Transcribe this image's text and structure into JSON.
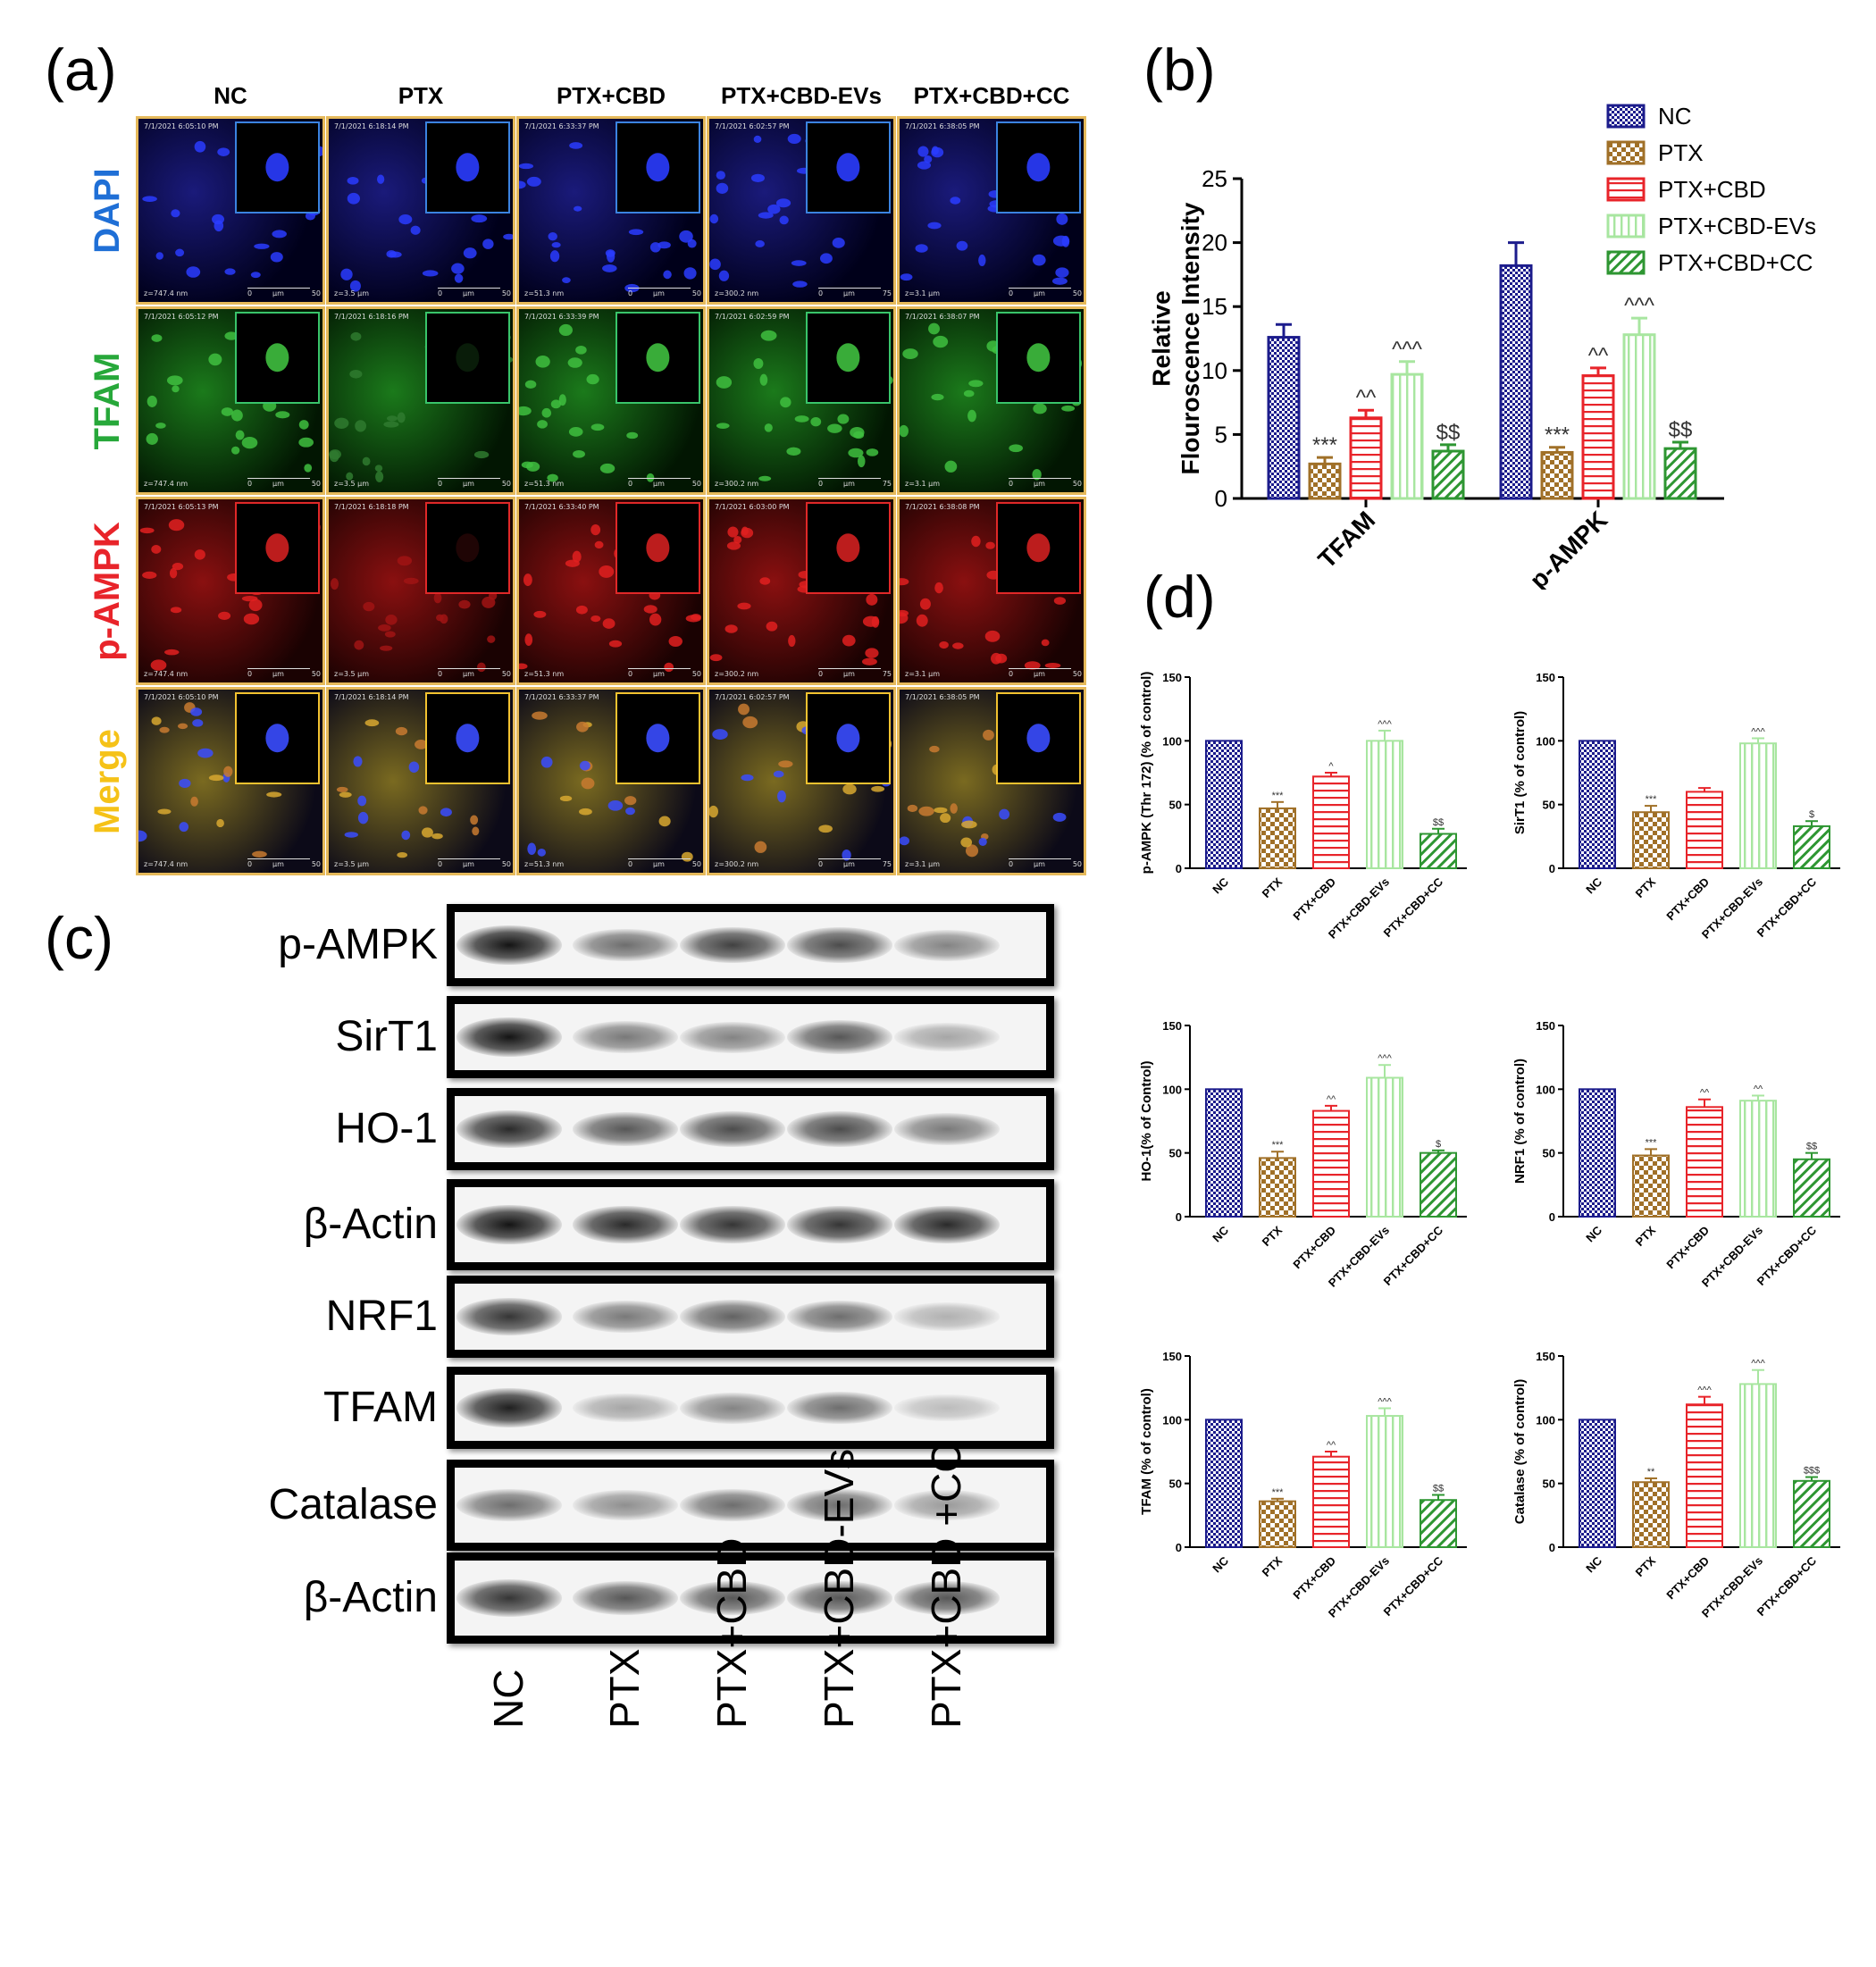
{
  "panels": {
    "a": "(a)",
    "b": "(b)",
    "c": "(c)",
    "d": "(d)"
  },
  "groups": [
    "NC",
    "PTX",
    "PTX+CBD",
    "PTX+CBD-EVs",
    "PTX+CBD+CC"
  ],
  "series_colors": [
    "#1c1c8c",
    "#a07028",
    "#e8242a",
    "#a8e6a0",
    "#2e9632"
  ],
  "micrographs": {
    "columns": [
      "NC",
      "PTX",
      "PTX+CBD",
      "PTX+CBD-EVs",
      "PTX+CBD+CC"
    ],
    "rows": [
      {
        "label": "DAPI",
        "color": "#1f6fd6"
      },
      {
        "label": "TFAM",
        "color": "#27a83a"
      },
      {
        "label": "p-AMPK",
        "color": "#e8242a"
      },
      {
        "label": "Merge",
        "color": "#f5c218"
      }
    ],
    "timestamps": [
      [
        "7/1/2021 6:05:10 PM",
        "7/1/2021 6:18:14 PM",
        "7/1/2021 6:33:37 PM",
        "7/1/2021 6:02:57 PM",
        "7/1/2021 6:38:05 PM"
      ],
      [
        "7/1/2021 6:05:12 PM",
        "7/1/2021 6:18:16 PM",
        "7/1/2021 6:33:39 PM",
        "7/1/2021 6:02:59 PM",
        "7/1/2021 6:38:07 PM"
      ],
      [
        "7/1/2021 6:05:13 PM",
        "7/1/2021 6:18:18 PM",
        "7/1/2021 6:33:40 PM",
        "7/1/2021 6:03:00 PM",
        "7/1/2021 6:38:08 PM"
      ],
      [
        "7/1/2021 6:05:10 PM",
        "7/1/2021 6:18:14 PM",
        "7/1/2021 6:33:37 PM",
        "7/1/2021 6:02:57 PM",
        "7/1/2021 6:38:05 PM"
      ]
    ],
    "z_labels": [
      "z=747.4 nm",
      "z=3.5 µm",
      "z=51.3 nm",
      "z=300.2 nm",
      "z=3.1 µm"
    ],
    "scale_unit": "µm",
    "scale_zero": "0",
    "scale_values": [
      "50",
      "50",
      "50",
      "75",
      "50"
    ]
  },
  "blot": {
    "proteins": [
      "p-AMPK",
      "SirT1",
      "HO-1",
      "β-Actin",
      "NRF1",
      "TFAM",
      "Catalase",
      "β-Actin"
    ],
    "lanes": [
      "NC",
      "PTX",
      "PTX+CBD",
      "PTX+CBD-EVs",
      "PTX+CBD +CC"
    ]
  },
  "chart_data": [
    {
      "type": "bar",
      "panel": "b",
      "categories": [
        "TFAM",
        "p-AMPK"
      ],
      "ylabel": "Relative Flouroscence Intensity",
      "ylim": [
        0,
        25
      ],
      "yticks": [
        0,
        5,
        10,
        15,
        20,
        25
      ],
      "series": [
        {
          "name": "NC",
          "values": [
            12.6,
            18.2
          ],
          "errors": [
            1.0,
            1.8
          ],
          "marks": [
            "",
            ""
          ]
        },
        {
          "name": "PTX",
          "values": [
            2.7,
            3.6
          ],
          "errors": [
            0.5,
            0.4
          ],
          "marks": [
            "***",
            "***"
          ]
        },
        {
          "name": "PTX+CBD",
          "values": [
            6.3,
            9.6
          ],
          "errors": [
            0.6,
            0.6
          ],
          "marks": [
            "^^",
            "^^"
          ]
        },
        {
          "name": "PTX+CBD-EVs",
          "values": [
            9.7,
            12.8
          ],
          "errors": [
            1.0,
            1.3
          ],
          "marks": [
            "^^^",
            "^^^"
          ]
        },
        {
          "name": "PTX+CBD+CC",
          "values": [
            3.7,
            3.9
          ],
          "errors": [
            0.5,
            0.5
          ],
          "marks": [
            "$$",
            "$$"
          ]
        }
      ],
      "legend": "top-right"
    },
    {
      "type": "bar",
      "panel": "d",
      "ylabel": "p-AMPK (Thr 172) (% of control)",
      "ylim": [
        0,
        150
      ],
      "yticks": [
        0,
        50,
        100,
        150
      ],
      "categories": [
        "NC",
        "PTX",
        "PTX+CBD",
        "PTX+CBD-EVs",
        "PTX+CBD+CC"
      ],
      "values": [
        100,
        47,
        72,
        100,
        27
      ],
      "errors": [
        0,
        5,
        3,
        8,
        4
      ],
      "marks": [
        "",
        "***",
        "^",
        "^^^",
        "$$"
      ]
    },
    {
      "type": "bar",
      "panel": "d",
      "ylabel": "SirT1 (% of control)",
      "ylim": [
        0,
        150
      ],
      "yticks": [
        0,
        50,
        100,
        150
      ],
      "categories": [
        "NC",
        "PTX",
        "PTX+CBD",
        "PTX+CBD-EVs",
        "PTX+CBD+CC"
      ],
      "values": [
        100,
        44,
        60,
        98,
        33
      ],
      "errors": [
        0,
        5,
        3,
        4,
        4
      ],
      "marks": [
        "",
        "***",
        "",
        "^^^",
        "$"
      ]
    },
    {
      "type": "bar",
      "panel": "d",
      "ylabel": "HO-1(% of Control)",
      "ylim": [
        0,
        150
      ],
      "yticks": [
        0,
        50,
        100,
        150
      ],
      "categories": [
        "NC",
        "PTX",
        "PTX+CBD",
        "PTX+CBD-EVs",
        "PTX+CBD+CC"
      ],
      "values": [
        100,
        46,
        83,
        109,
        50
      ],
      "errors": [
        0,
        5,
        4,
        10,
        2
      ],
      "marks": [
        "",
        "***",
        "^^",
        "^^^",
        "$"
      ]
    },
    {
      "type": "bar",
      "panel": "d",
      "ylabel": "NRF1 (% of control)",
      "ylim": [
        0,
        150
      ],
      "yticks": [
        0,
        50,
        100,
        150
      ],
      "categories": [
        "NC",
        "PTX",
        "PTX+CBD",
        "PTX+CBD-EVs",
        "PTX+CBD+CC"
      ],
      "values": [
        100,
        48,
        86,
        91,
        45
      ],
      "errors": [
        0,
        5,
        6,
        4,
        5
      ],
      "marks": [
        "",
        "***",
        "^^",
        "^^",
        "$$"
      ]
    },
    {
      "type": "bar",
      "panel": "d",
      "ylabel": "TFAM (% of control)",
      "ylim": [
        0,
        150
      ],
      "yticks": [
        0,
        50,
        100,
        150
      ],
      "categories": [
        "NC",
        "PTX",
        "PTX+CBD",
        "PTX+CBD-EVs",
        "PTX+CBD+CC"
      ],
      "values": [
        100,
        36,
        71,
        103,
        37
      ],
      "errors": [
        0,
        2,
        4,
        6,
        4
      ],
      "marks": [
        "",
        "***",
        "^^",
        "^^^",
        "$$"
      ]
    },
    {
      "type": "bar",
      "panel": "d",
      "ylabel": "Catalase (% of control)",
      "ylim": [
        0,
        150
      ],
      "yticks": [
        0,
        50,
        100,
        150
      ],
      "categories": [
        "NC",
        "PTX",
        "PTX+CBD",
        "PTX+CBD-EVs",
        "PTX+CBD+CC"
      ],
      "values": [
        100,
        51,
        112,
        128,
        52
      ],
      "errors": [
        0,
        3,
        6,
        11,
        3
      ],
      "marks": [
        "",
        "**",
        "^^^",
        "^^^",
        "$$$"
      ]
    }
  ]
}
